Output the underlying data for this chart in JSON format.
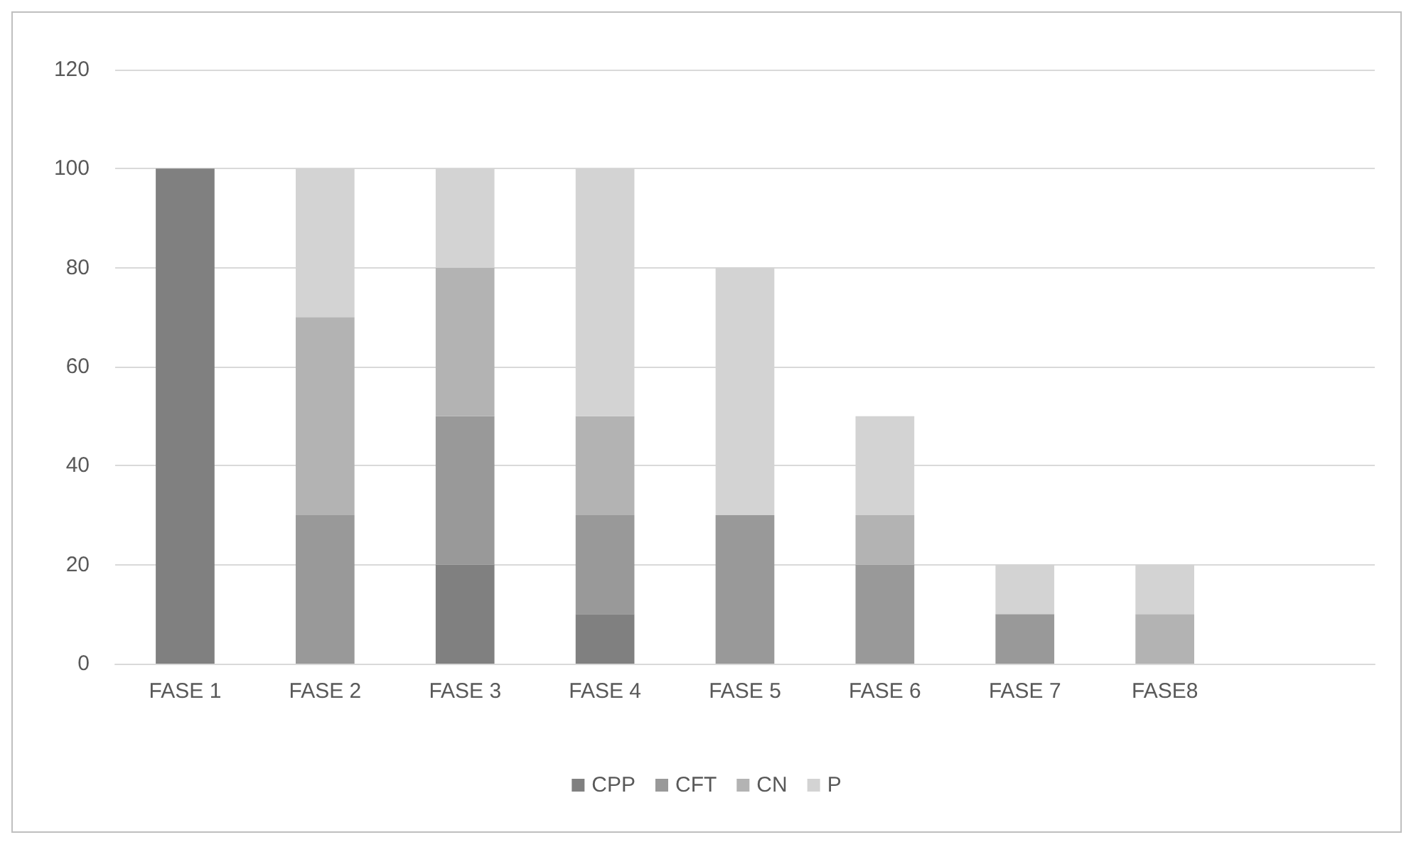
{
  "chart_data": {
    "type": "bar",
    "stacked": true,
    "categories": [
      "FASE 1",
      "FASE 2",
      "FASE 3",
      "FASE 4",
      "FASE 5",
      "FASE 6",
      "FASE 7",
      "FASE8",
      null
    ],
    "series": [
      {
        "name": "CPP",
        "color": "#808080",
        "values": [
          100,
          null,
          20,
          10,
          null,
          null,
          null,
          null,
          null
        ]
      },
      {
        "name": "CFT",
        "color": "#999999",
        "values": [
          null,
          30,
          30,
          20,
          30,
          20,
          10,
          null,
          null
        ]
      },
      {
        "name": "CN",
        "color": "#b3b3b3",
        "values": [
          null,
          40,
          30,
          20,
          null,
          10,
          null,
          10,
          null
        ]
      },
      {
        "name": "P",
        "color": "#d3d3d3",
        "values": [
          null,
          30,
          20,
          50,
          50,
          20,
          10,
          10,
          null
        ]
      }
    ],
    "ylim": [
      0,
      120
    ],
    "yticks": [
      0,
      20,
      40,
      60,
      80,
      100,
      120
    ],
    "grid": "y",
    "legend": "bottom"
  }
}
